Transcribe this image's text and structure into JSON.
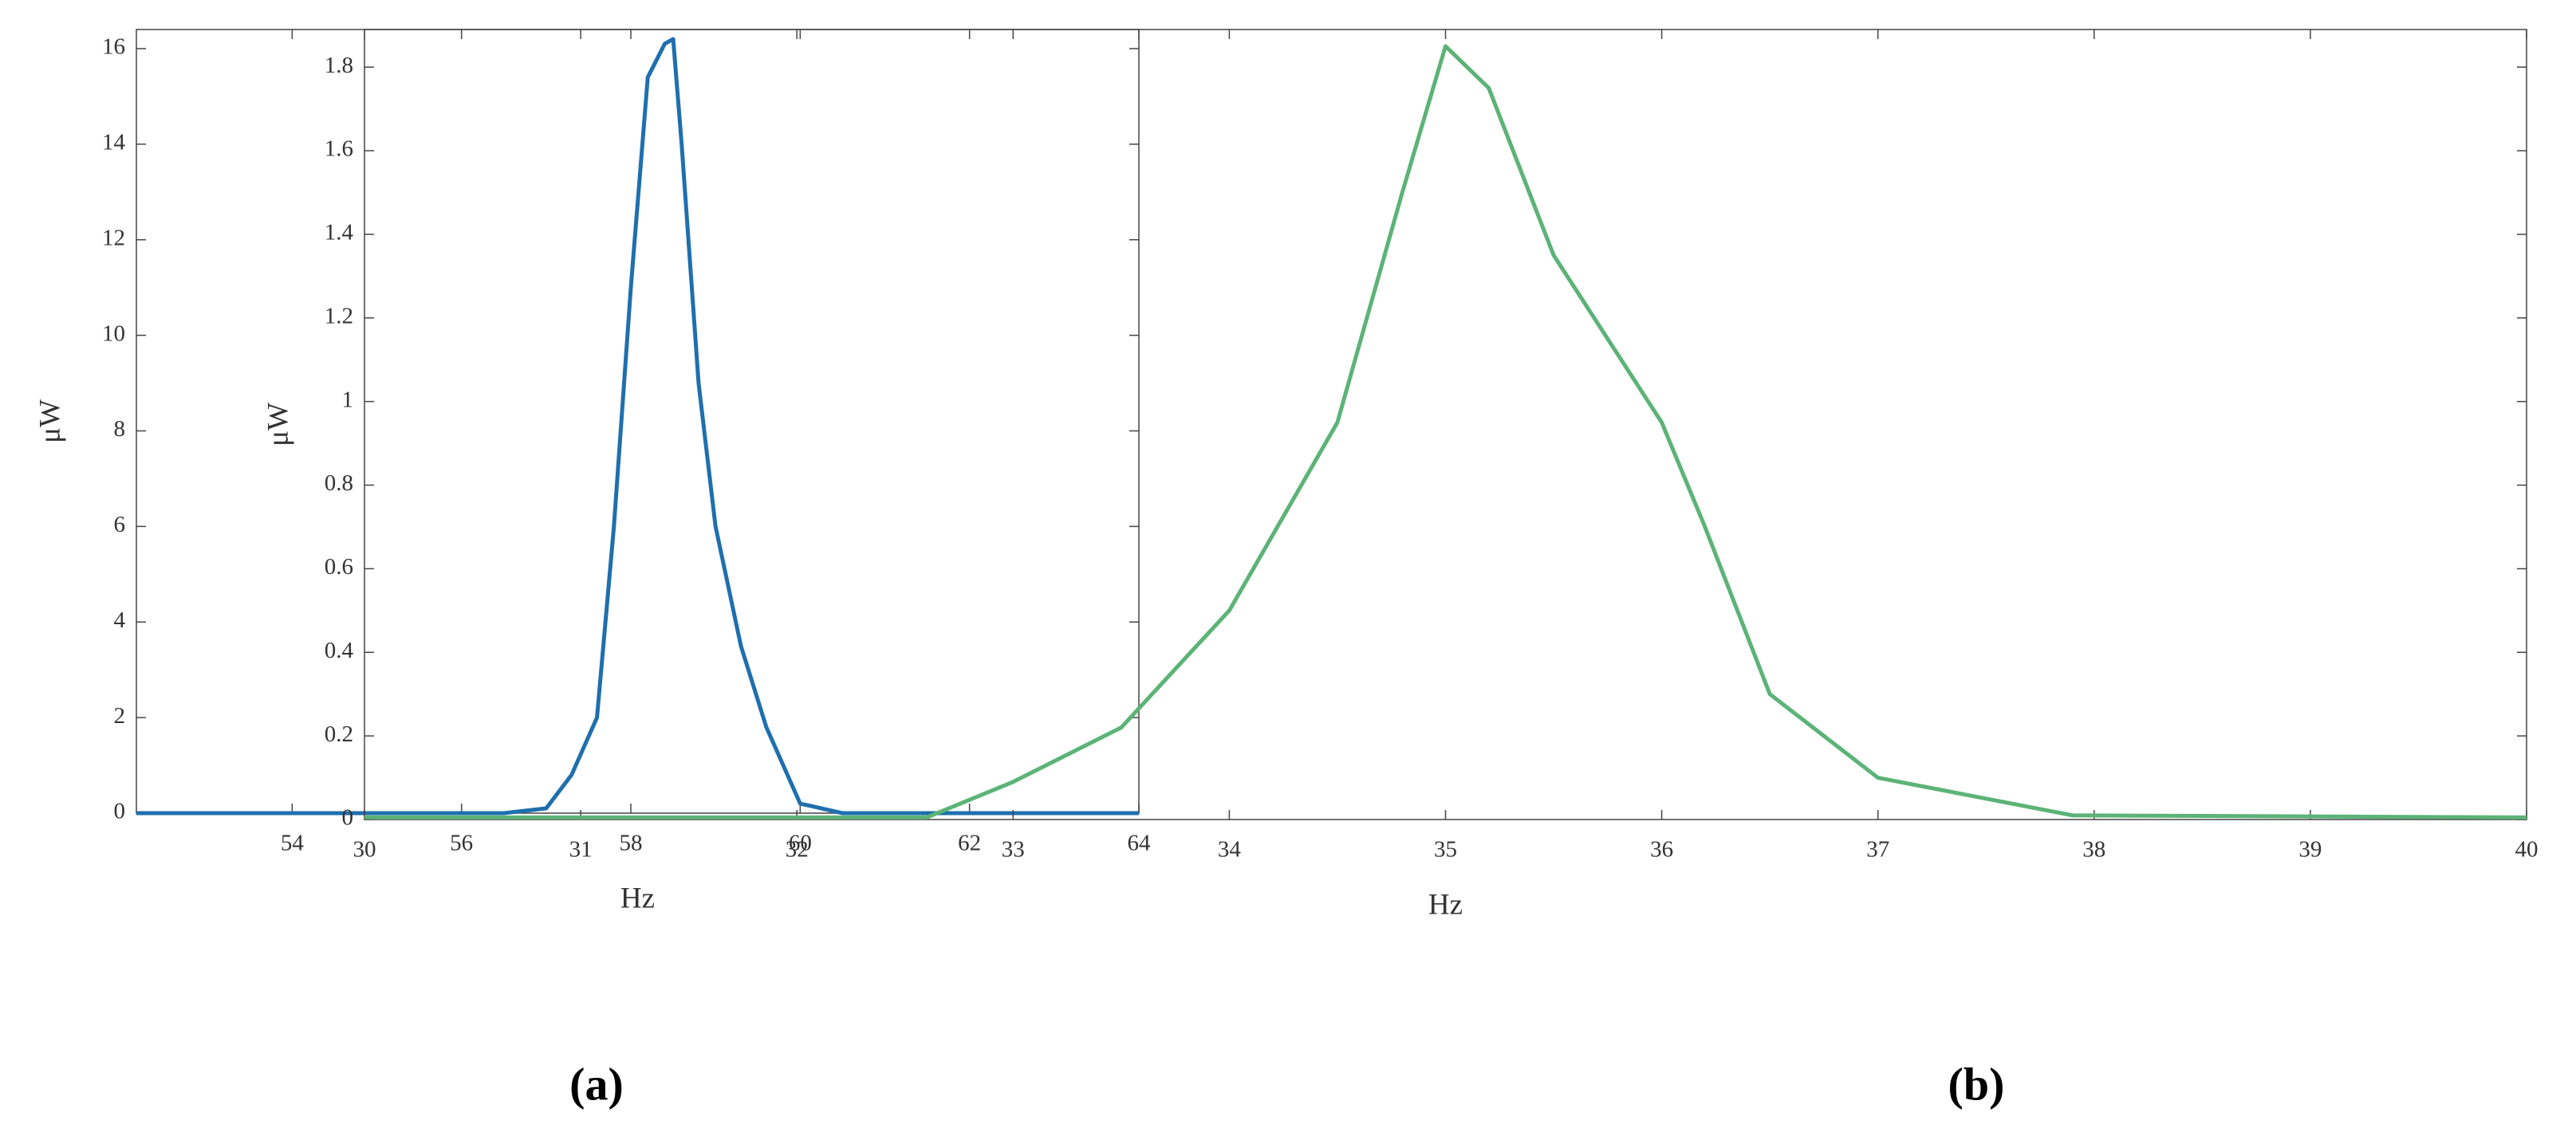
{
  "chart_data": [
    {
      "type": "line",
      "panel_label": "(a)",
      "x_label": "Hz",
      "y_label": "μW",
      "xlim": [
        52.16,
        64
      ],
      "xticks": [
        54,
        56,
        58,
        60,
        62,
        64
      ],
      "ylim": [
        0,
        16.4
      ],
      "yticks": [
        0,
        2,
        4,
        6,
        8,
        10,
        12,
        14,
        16
      ],
      "series": [
        {
          "color": "#1f6fae",
          "x": [
            52.16,
            56.5,
            57.0,
            57.3,
            57.6,
            57.8,
            58.0,
            58.2,
            58.4,
            58.5,
            58.6,
            58.8,
            59.0,
            59.3,
            59.6,
            60.0,
            60.5,
            64
          ],
          "values": [
            0,
            0,
            0.1,
            0.8,
            2,
            6,
            11,
            15.4,
            16.1,
            16.2,
            14,
            9,
            6,
            3.5,
            1.8,
            0.2,
            0,
            0
          ]
        }
      ]
    },
    {
      "type": "line",
      "panel_label": "(b)",
      "x_label": "Hz",
      "y_label": "μW",
      "xlim": [
        30,
        40
      ],
      "xticks": [
        30,
        31,
        32,
        33,
        34,
        35,
        36,
        37,
        38,
        39,
        40
      ],
      "ylim": [
        0,
        1.89
      ],
      "yticks": [
        0,
        0.2,
        0.4,
        0.6,
        0.8,
        1,
        1.2,
        1.4,
        1.6,
        1.8
      ],
      "series": [
        {
          "color": "#5cb377",
          "x": [
            30,
            32.6,
            33,
            33.5,
            34,
            34.5,
            34.8,
            35,
            35.2,
            35.5,
            36,
            36.2,
            36.5,
            37,
            37.5,
            37.9,
            40
          ],
          "values": [
            0.005,
            0.005,
            0.09,
            0.22,
            0.5,
            0.95,
            1.5,
            1.85,
            1.75,
            1.35,
            0.95,
            0.7,
            0.3,
            0.1,
            0.05,
            0.01,
            0.005
          ]
        }
      ]
    }
  ]
}
